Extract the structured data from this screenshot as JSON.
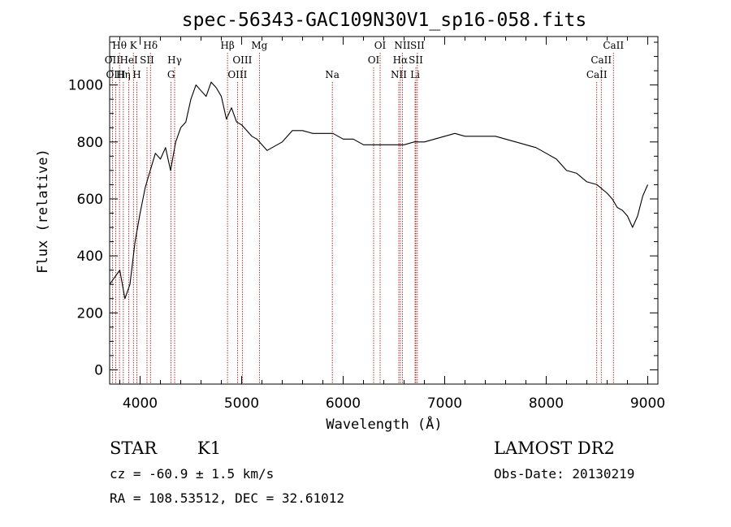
{
  "chart_data": {
    "type": "line",
    "title": "spec-56343-GAC109N30V1_sp16-058.fits",
    "xlabel": "Wavelength (Å)",
    "ylabel": "Flux (relative)",
    "xlim": [
      3700,
      9100
    ],
    "ylim": [
      -50,
      1170
    ],
    "xticks": [
      4000,
      5000,
      6000,
      7000,
      8000,
      9000
    ],
    "yticks": [
      0,
      200,
      400,
      600,
      800,
      1000
    ],
    "grid": false,
    "legend": "none",
    "line_color": "#000000",
    "marker_line_color": "#a00000",
    "series": [
      {
        "x": [
          3700,
          3800,
          3850,
          3900,
          3950,
          4000,
          4050,
          4100,
          4150,
          4200,
          4250,
          4300,
          4350,
          4400,
          4450,
          4500,
          4550,
          4600,
          4650,
          4700,
          4750,
          4800,
          4850,
          4900,
          4950,
          5000,
          5050,
          5100,
          5150,
          5200,
          5250,
          5300,
          5400,
          5500,
          5600,
          5700,
          5800,
          5900,
          6000,
          6100,
          6200,
          6300,
          6400,
          6500,
          6600,
          6700,
          6800,
          6900,
          7000,
          7100,
          7200,
          7300,
          7400,
          7500,
          7600,
          7700,
          7800,
          7900,
          8000,
          8100,
          8200,
          8300,
          8400,
          8500,
          8600,
          8650,
          8700,
          8750,
          8800,
          8850,
          8900,
          8950,
          9000
        ],
        "y": [
          300,
          350,
          250,
          300,
          450,
          550,
          640,
          700,
          760,
          740,
          780,
          700,
          800,
          850,
          870,
          950,
          1000,
          980,
          960,
          1010,
          990,
          960,
          880,
          920,
          870,
          860,
          840,
          820,
          810,
          790,
          770,
          780,
          800,
          840,
          840,
          830,
          830,
          830,
          810,
          810,
          790,
          790,
          790,
          790,
          790,
          800,
          800,
          810,
          820,
          830,
          820,
          820,
          820,
          820,
          810,
          800,
          790,
          780,
          760,
          740,
          700,
          690,
          660,
          650,
          620,
          600,
          570,
          560,
          540,
          500,
          540,
          610,
          650
        ]
      }
    ],
    "line_markers": [
      {
        "label": "Hθ",
        "x": 3797,
        "row": 0
      },
      {
        "label": "K",
        "x": 3934,
        "row": 0
      },
      {
        "label": "Hδ",
        "x": 4102,
        "row": 0
      },
      {
        "label": "Hβ",
        "x": 4861,
        "row": 0
      },
      {
        "label": "Mg",
        "x": 5175,
        "row": 0
      },
      {
        "label": "OI",
        "x": 6364,
        "row": 0
      },
      {
        "label": "NII",
        "x": 6583,
        "row": 0
      },
      {
        "label": "SII",
        "x": 6731,
        "row": 0
      },
      {
        "label": "CaII",
        "x": 8662,
        "row": 0
      },
      {
        "label": "OII",
        "x": 3727,
        "row": 1
      },
      {
        "label": "HeI",
        "x": 3889,
        "row": 1
      },
      {
        "label": "SII",
        "x": 4068,
        "row": 1
      },
      {
        "label": "Hγ",
        "x": 4340,
        "row": 1
      },
      {
        "label": "OIII",
        "x": 5007,
        "row": 1
      },
      {
        "label": "OI",
        "x": 6300,
        "row": 1
      },
      {
        "label": "Hα",
        "x": 6563,
        "row": 1
      },
      {
        "label": "SII",
        "x": 6716,
        "row": 1
      },
      {
        "label": "CaII",
        "x": 8542,
        "row": 1
      },
      {
        "label": "OIII",
        "x": 3760,
        "row": 2
      },
      {
        "label": "Hη",
        "x": 3835,
        "row": 2
      },
      {
        "label": "H",
        "x": 3968,
        "row": 2
      },
      {
        "label": "G",
        "x": 4305,
        "row": 2
      },
      {
        "label": "OIII",
        "x": 4959,
        "row": 2
      },
      {
        "label": "Na",
        "x": 5893,
        "row": 2
      },
      {
        "label": "NII",
        "x": 6548,
        "row": 2
      },
      {
        "label": "Li",
        "x": 6708,
        "row": 2
      },
      {
        "label": "CaII",
        "x": 8498,
        "row": 2
      }
    ]
  },
  "info": {
    "object_class": "STAR",
    "subclass": "K1",
    "survey": "LAMOST DR2",
    "cz": "cz = -60.9 ± 1.5 km/s",
    "obs_date": "Obs-Date: 20130219",
    "coords": "RA = 108.53512, DEC =  32.61012"
  }
}
